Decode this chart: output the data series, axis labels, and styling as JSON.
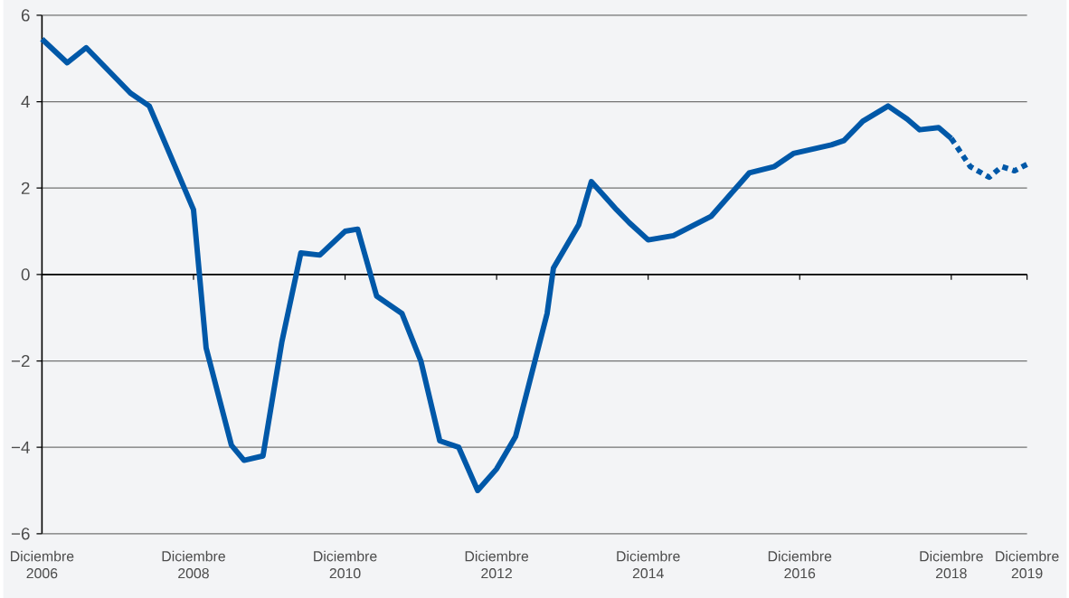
{
  "chart_data": {
    "type": "line",
    "series": [
      {
        "color": "#0058a8",
        "line_style": "solid",
        "x": [
          "2006-12",
          "2007-04",
          "2007-07",
          "2008-02",
          "2008-05",
          "2008-12",
          "2009-02",
          "2009-06",
          "2009-08",
          "2009-11",
          "2010-02",
          "2010-05",
          "2010-08",
          "2010-12",
          "2011-02",
          "2011-05",
          "2011-09",
          "2011-12",
          "2012-03",
          "2012-06",
          "2012-09",
          "2012-12",
          "2013-03",
          "2013-08",
          "2013-09",
          "2014-01",
          "2014-03",
          "2014-07",
          "2014-09",
          "2014-12",
          "2015-04",
          "2015-10",
          "2016-04",
          "2016-08",
          "2016-11",
          "2017-05",
          "2017-07",
          "2017-10",
          "2018-02",
          "2018-05",
          "2018-07",
          "2018-10",
          "2018-12"
        ],
        "values": [
          5.45,
          4.9,
          5.25,
          4.2,
          3.9,
          1.5,
          -1.7,
          -3.95,
          -4.3,
          -4.2,
          -1.55,
          0.5,
          0.45,
          1.0,
          1.05,
          -0.5,
          -0.9,
          -2.0,
          -3.85,
          -4.0,
          -5.0,
          -4.5,
          -3.75,
          -0.9,
          0.15,
          1.15,
          2.15,
          1.5,
          1.2,
          0.8,
          0.9,
          1.35,
          2.35,
          2.5,
          2.8,
          3.0,
          3.1,
          3.55,
          3.9,
          3.6,
          3.35,
          3.4,
          3.15
        ]
      },
      {
        "color": "#0058a8",
        "line_style": "dotted",
        "x": [
          "2018-12",
          "2019-03",
          "2019-06",
          "2019-08",
          "2019-10",
          "2019-12"
        ],
        "values": [
          3.15,
          2.5,
          2.25,
          2.5,
          2.4,
          2.55
        ]
      }
    ],
    "xlim": [
      "2006-12",
      "2019-12"
    ],
    "xticks": [
      {
        "value": "2006-12",
        "label": "Diciembre 2006"
      },
      {
        "value": "2008-12",
        "label": "Diciembre 2008"
      },
      {
        "value": "2010-12",
        "label": "Diciembre 2010"
      },
      {
        "value": "2012-12",
        "label": "Diciembre 2012"
      },
      {
        "value": "2014-12",
        "label": "Diciembre 2014"
      },
      {
        "value": "2016-12",
        "label": "Diciembre 2016"
      },
      {
        "value": "2018-12",
        "label": "Diciembre 2018"
      },
      {
        "value": "2019-12",
        "label": "Diciembre 2019"
      }
    ],
    "ylim": [
      -6,
      6
    ],
    "yticks": [
      {
        "value": -6,
        "label": "−6"
      },
      {
        "value": -4,
        "label": "−4"
      },
      {
        "value": -2,
        "label": "−2"
      },
      0,
      2,
      4,
      6
    ],
    "grid": "y"
  }
}
